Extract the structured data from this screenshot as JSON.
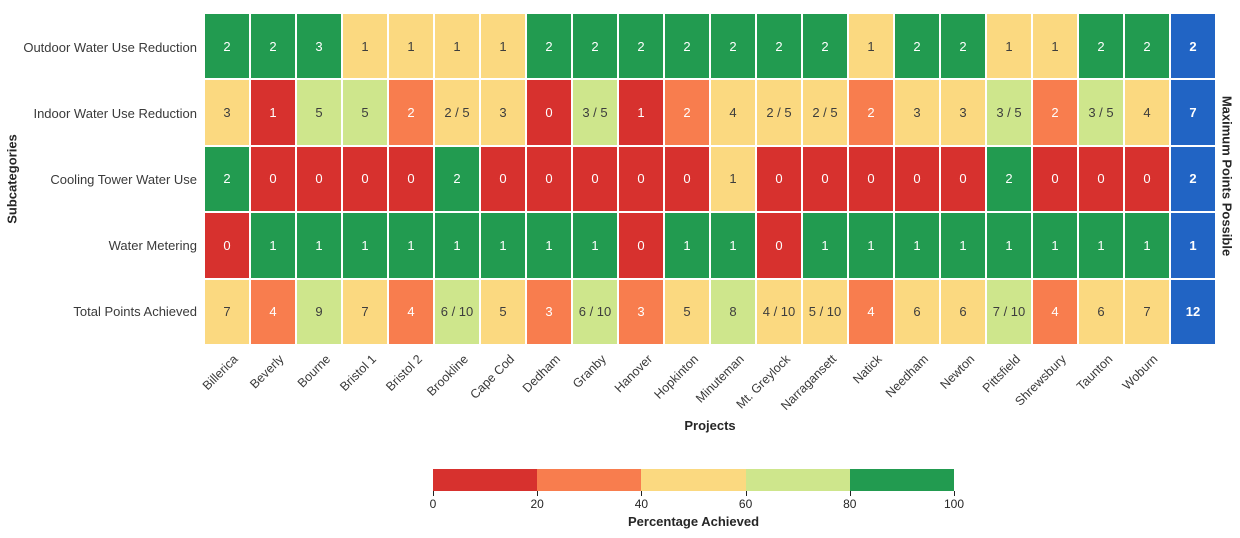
{
  "chart_data": {
    "type": "heatmap",
    "xlabel": "Projects",
    "ylabel": "Subcategories",
    "right_label": "Maximum Points Possible",
    "projects": [
      "Billerica",
      "Beverly",
      "Bourne",
      "Bristol 1",
      "Bristol 2",
      "Brookline",
      "Cape Cod",
      "Dedham",
      "Granby",
      "Hanover",
      "Hopkinton",
      "Minuteman",
      "Mt. Greylock",
      "Narragansett",
      "Natick",
      "Needham",
      "Newton",
      "Pittsfield",
      "Shrewsbury",
      "Taunton",
      "Woburn"
    ],
    "rows": [
      {
        "label": "Outdoor Water Use Reduction",
        "max_points": 2,
        "values": [
          2,
          2,
          3,
          1,
          1,
          1,
          1,
          2,
          2,
          2,
          2,
          2,
          2,
          2,
          1,
          2,
          2,
          1,
          1,
          2,
          2
        ]
      },
      {
        "label": "Indoor Water Use Reduction",
        "max_points": 7,
        "values": [
          3,
          1,
          5,
          5,
          2,
          "2 / 5",
          3,
          0,
          "3 / 5",
          1,
          2,
          4,
          "2 / 5",
          "2 / 5",
          2,
          3,
          3,
          "3 / 5",
          2,
          "3 / 5",
          4
        ]
      },
      {
        "label": "Cooling Tower Water Use",
        "max_points": 2,
        "values": [
          2,
          0,
          0,
          0,
          0,
          2,
          0,
          0,
          0,
          0,
          0,
          1,
          0,
          0,
          0,
          0,
          0,
          2,
          0,
          0,
          0
        ]
      },
      {
        "label": "Water Metering",
        "max_points": 1,
        "values": [
          0,
          1,
          1,
          1,
          1,
          1,
          1,
          1,
          1,
          0,
          1,
          1,
          0,
          1,
          1,
          1,
          1,
          1,
          1,
          1,
          1
        ]
      },
      {
        "label": "Total Points Achieved",
        "max_points": 12,
        "values": [
          7,
          4,
          9,
          7,
          4,
          "6 / 10",
          5,
          3,
          "6 / 10",
          3,
          5,
          8,
          "4 / 10",
          "5 / 10",
          4,
          6,
          6,
          "7 / 10",
          4,
          6,
          7
        ]
      }
    ],
    "max_column_values": [
      2,
      7,
      2,
      1,
      12
    ],
    "colorbar": {
      "title": "Percentage Achieved",
      "ticks": [
        0,
        20,
        40,
        60,
        80,
        100
      ],
      "segment_order": [
        "red",
        "orange",
        "yellow",
        "lightgreen",
        "green"
      ]
    },
    "colors": {
      "red": "#d7312e",
      "orange": "#f87d4e",
      "yellow": "#fbd980",
      "lightgreen": "#cee68c",
      "green": "#229b50",
      "max_blue": "#2164c4",
      "dark_text": "#3d3d3d",
      "light_text": "#ffffff"
    }
  }
}
